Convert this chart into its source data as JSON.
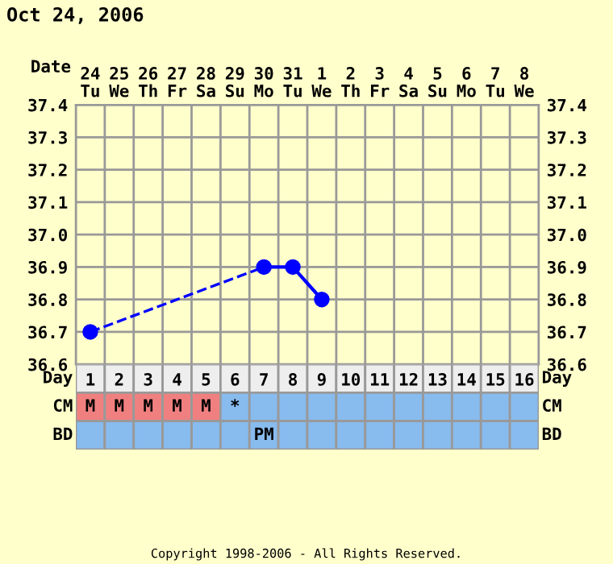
{
  "chart_data": [
    {
      "type": "line",
      "title": "Oct 24, 2006",
      "xlabel": "Date",
      "categories": [
        "24\nTu",
        "25\nWe",
        "26\nTh",
        "27\nFr",
        "28\nSa",
        "29\nSu",
        "30\nMo",
        "31\nTu",
        "1\nWe",
        "2\nTh",
        "3\nFr",
        "4\nSa",
        "5\nSu",
        "6\nMo",
        "7\nTu",
        "8\nWe"
      ],
      "series": [
        {
          "color": "#0000ff",
          "values": [
            36.7,
            null,
            null,
            null,
            null,
            null,
            36.9,
            36.9,
            36.8,
            null,
            null,
            null,
            null,
            null,
            null,
            null
          ]
        }
      ],
      "ylim": [
        36.6,
        37.4
      ],
      "yticks": [
        36.6,
        36.7,
        36.8,
        36.9,
        {
          "value": 37,
          "label": "37.0"
        },
        37.1,
        37.2,
        37.3,
        37.4
      ],
      "y2lim": [
        36.6,
        37.4
      ],
      "y2ticks": [
        36.6,
        36.7,
        36.8,
        36.9,
        {
          "value": 37,
          "label": "37.0"
        },
        37.1,
        37.2,
        37.3,
        37.4
      ],
      "grid": true,
      "marker": "circle",
      "line_style": "solid"
    },
    {
      "type": "heatmap",
      "ylabel": "Day",
      "y2label": "Day",
      "cells": [
        [
          null,
          null,
          null,
          null,
          null,
          null,
          null,
          null,
          null,
          null,
          null,
          null,
          null,
          null,
          null,
          null
        ],
        [
          null,
          null,
          null,
          null,
          null,
          null,
          null,
          null,
          null,
          null,
          null,
          null,
          null,
          null,
          null,
          null
        ]
      ],
      "categories": [
        "1",
        "2",
        "3",
        "4",
        "5",
        "6",
        "7",
        "8",
        "9",
        "10",
        "11",
        "12",
        "13",
        "14",
        "15",
        "16"
      ],
      "y_categories": [
        "CM",
        "BD"
      ],
      "y2_categories": [
        "CM",
        "BD"
      ],
      "cell_labels": [
        [
          "M",
          "M",
          "M",
          "M",
          "M",
          "*",
          null,
          null,
          null,
          null,
          null,
          null,
          null,
          null,
          null,
          null
        ],
        [
          null,
          null,
          null,
          null,
          null,
          null,
          "PM",
          null,
          null,
          null,
          null,
          null,
          null,
          null,
          null,
          null
        ]
      ],
      "colors": [
        [
          "#f08080",
          "#f08080",
          "#f08080",
          "#f08080",
          "#f08080",
          "#88bbee",
          "#88bbee",
          "#88bbee",
          "#88bbee",
          "#88bbee",
          "#88bbee",
          "#88bbee",
          "#88bbee",
          "#88bbee",
          "#88bbee",
          "#88bbee"
        ],
        [
          "#88bbee",
          "#88bbee",
          "#88bbee",
          "#88bbee",
          "#88bbee",
          "#88bbee",
          "#88bbee",
          "#88bbee",
          "#88bbee",
          "#88bbee",
          "#88bbee",
          "#88bbee",
          "#88bbee",
          "#88bbee",
          "#88bbee",
          "#88bbee"
        ]
      ],
      "annotations": [
        "Copyright 1998-2006 - All Rights Reserved."
      ]
    }
  ]
}
